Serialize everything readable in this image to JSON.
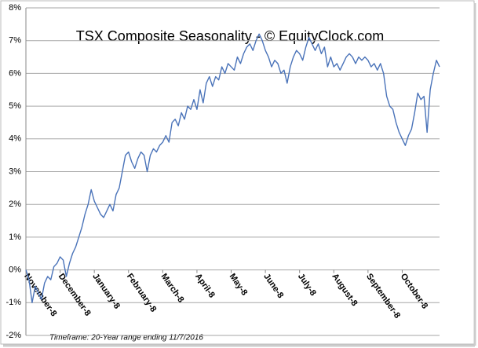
{
  "chart_data": {
    "type": "line",
    "title": "TSX Composite Seasonality - © EquityClock.com",
    "footnote": "Timeframe: 20-Year range ending 11/7/2016",
    "categories": [
      "November-8",
      null,
      null,
      null,
      null,
      null,
      null,
      null,
      null,
      null,
      null,
      "December-8",
      null,
      null,
      null,
      null,
      null,
      null,
      null,
      null,
      null,
      null,
      "January-8",
      null,
      null,
      null,
      null,
      null,
      null,
      null,
      null,
      null,
      null,
      "February-8",
      null,
      null,
      null,
      null,
      null,
      null,
      null,
      null,
      null,
      null,
      "March-8",
      null,
      null,
      null,
      null,
      null,
      null,
      null,
      null,
      null,
      null,
      "April-8",
      null,
      null,
      null,
      null,
      null,
      null,
      null,
      null,
      null,
      null,
      "May-8",
      null,
      null,
      null,
      null,
      null,
      null,
      null,
      null,
      null,
      null,
      "June-8",
      null,
      null,
      null,
      null,
      null,
      null,
      null,
      null,
      null,
      null,
      "July-8",
      null,
      null,
      null,
      null,
      null,
      null,
      null,
      null,
      null,
      null,
      "August-8",
      null,
      null,
      null,
      null,
      null,
      null,
      null,
      null,
      null,
      null,
      "September-8",
      null,
      null,
      null,
      null,
      null,
      null,
      null,
      null,
      null,
      null,
      "October-8",
      null,
      null,
      null,
      null,
      null,
      null,
      null,
      null,
      null,
      null,
      null,
      null
    ],
    "series": [
      {
        "name": "TSX Composite",
        "color": "#4a73b9",
        "values": [
          0,
          -0.3,
          -1.0,
          -0.5,
          -0.7,
          -0.9,
          -0.4,
          -0.2,
          -0.3,
          0.1,
          0.2,
          0.4,
          0.3,
          -0.2,
          0.2,
          0.5,
          0.7,
          1.0,
          1.3,
          1.7,
          2.0,
          2.45,
          2.1,
          1.9,
          1.7,
          1.6,
          1.8,
          2.0,
          1.8,
          2.3,
          2.5,
          3.0,
          3.5,
          3.6,
          3.3,
          3.1,
          3.4,
          3.6,
          3.5,
          3.0,
          3.5,
          3.7,
          3.6,
          3.8,
          3.9,
          4.1,
          3.9,
          4.5,
          4.6,
          4.4,
          4.8,
          4.6,
          5.0,
          4.9,
          5.2,
          4.9,
          5.5,
          5.1,
          5.7,
          5.9,
          5.6,
          5.9,
          5.8,
          6.2,
          6.0,
          6.3,
          6.2,
          6.1,
          6.5,
          6.3,
          6.6,
          6.8,
          6.9,
          6.7,
          7.0,
          7.2,
          7.0,
          6.7,
          6.5,
          6.2,
          6.4,
          6.3,
          6.0,
          6.1,
          5.7,
          6.2,
          6.5,
          6.7,
          6.6,
          6.4,
          6.8,
          7.1,
          6.9,
          6.7,
          6.9,
          6.6,
          6.8,
          6.2,
          6.5,
          6.2,
          6.3,
          6.1,
          6.3,
          6.5,
          6.6,
          6.5,
          6.3,
          6.5,
          6.4,
          6.5,
          6.4,
          6.2,
          6.3,
          6.1,
          6.3,
          6.0,
          5.3,
          5.0,
          4.9,
          4.5,
          4.2,
          4.0,
          3.8,
          4.1,
          4.3,
          4.8,
          5.4,
          5.2,
          5.3,
          4.2,
          5.5,
          6.0,
          6.4,
          6.2
        ]
      }
    ],
    "ylim": [
      -2,
      8
    ],
    "yticks": [
      {
        "value": -2,
        "label": "-2%"
      },
      {
        "value": -1,
        "label": "-1%"
      },
      {
        "value": 0,
        "label": "0%"
      },
      {
        "value": 1,
        "label": "1%"
      },
      {
        "value": 2,
        "label": "2%"
      },
      {
        "value": 3,
        "label": "3%"
      },
      {
        "value": 4,
        "label": "4%"
      },
      {
        "value": 5,
        "label": "5%"
      },
      {
        "value": 6,
        "label": "6%"
      },
      {
        "value": 7,
        "label": "7%"
      },
      {
        "value": 8,
        "label": "8%"
      }
    ],
    "grid": true
  }
}
